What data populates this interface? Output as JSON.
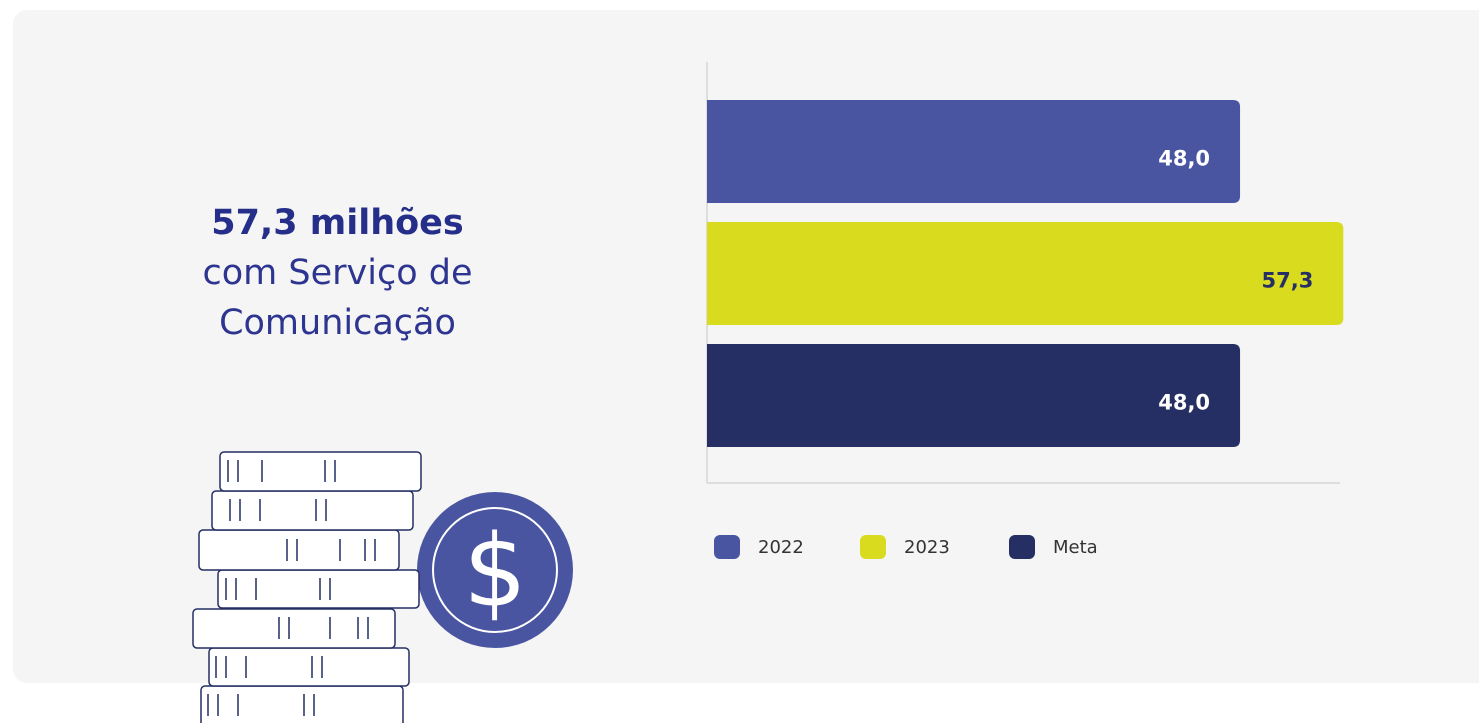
{
  "headline": "57,3 milhões",
  "subtitle": "com Serviço de Comunicação",
  "chart_data": {
    "type": "bar",
    "orientation": "horizontal",
    "categories": [
      "2022",
      "2023",
      "Meta"
    ],
    "values": [
      48.0,
      57.3,
      48.0
    ],
    "value_labels": [
      "48,0",
      "57,3",
      "48,0"
    ],
    "colors": [
      "#4a55a2",
      "#d9dc1e",
      "#252f63"
    ],
    "value_label_colors": [
      "#ffffff",
      "#252f63",
      "#ffffff"
    ],
    "xlim": [
      0,
      57
    ],
    "legend": "bottom"
  }
}
